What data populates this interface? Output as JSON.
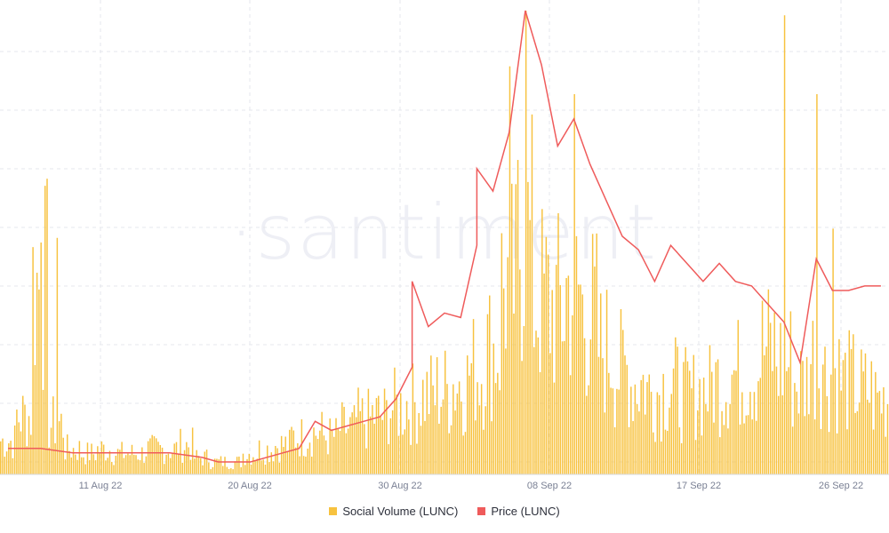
{
  "watermark": "·santiment",
  "colors": {
    "volume": "#f7c23f",
    "price": "#ef5b5b",
    "grid": "#e6e7ec"
  },
  "chart_data": {
    "type": "bar",
    "grid": true,
    "legend_position": "bottom-center",
    "x_ticks": [
      "11 Aug 22",
      "20 Aug 22",
      "30 Aug 22",
      "08 Sep 22",
      "17 Sep 22",
      "26 Sep 22"
    ],
    "x_range": [
      "2022-08-07",
      "2022-09-30"
    ],
    "y_volume_range": [
      0,
      100
    ],
    "y_price_range": [
      0,
      100
    ],
    "series": [
      {
        "name": "Social Volume (LUNC)",
        "type": "bar",
        "daily_level": [
          {
            "date": "2022-08-07",
            "v": 8
          },
          {
            "date": "2022-08-08",
            "v": 14
          },
          {
            "date": "2022-08-09",
            "v": 45
          },
          {
            "date": "2022-08-10",
            "v": 12
          },
          {
            "date": "2022-08-11",
            "v": 6
          },
          {
            "date": "2022-08-12",
            "v": 5
          },
          {
            "date": "2022-08-13",
            "v": 6
          },
          {
            "date": "2022-08-14",
            "v": 5
          },
          {
            "date": "2022-08-15",
            "v": 5
          },
          {
            "date": "2022-08-16",
            "v": 6
          },
          {
            "date": "2022-08-17",
            "v": 6
          },
          {
            "date": "2022-08-18",
            "v": 7
          },
          {
            "date": "2022-08-19",
            "v": 4
          },
          {
            "date": "2022-08-20",
            "v": 3
          },
          {
            "date": "2022-08-21",
            "v": 3
          },
          {
            "date": "2022-08-22",
            "v": 5
          },
          {
            "date": "2022-08-23",
            "v": 6
          },
          {
            "date": "2022-08-24",
            "v": 7
          },
          {
            "date": "2022-08-25",
            "v": 9
          },
          {
            "date": "2022-08-26",
            "v": 10
          },
          {
            "date": "2022-08-27",
            "v": 9
          },
          {
            "date": "2022-08-28",
            "v": 11
          },
          {
            "date": "2022-08-29",
            "v": 13
          },
          {
            "date": "2022-08-30",
            "v": 14
          },
          {
            "date": "2022-08-31",
            "v": 16
          },
          {
            "date": "2022-09-01",
            "v": 17
          },
          {
            "date": "2022-09-02",
            "v": 19
          },
          {
            "date": "2022-09-03",
            "v": 20
          },
          {
            "date": "2022-09-04",
            "v": 22
          },
          {
            "date": "2022-09-05",
            "v": 25
          },
          {
            "date": "2022-09-06",
            "v": 30
          },
          {
            "date": "2022-09-07",
            "v": 45
          },
          {
            "date": "2022-09-08",
            "v": 55
          },
          {
            "date": "2022-09-09",
            "v": 42
          },
          {
            "date": "2022-09-10",
            "v": 40
          },
          {
            "date": "2022-09-11",
            "v": 44
          },
          {
            "date": "2022-09-12",
            "v": 38
          },
          {
            "date": "2022-09-13",
            "v": 30
          },
          {
            "date": "2022-09-14",
            "v": 25
          },
          {
            "date": "2022-09-15",
            "v": 22
          },
          {
            "date": "2022-09-16",
            "v": 20
          },
          {
            "date": "2022-09-17",
            "v": 21
          },
          {
            "date": "2022-09-18",
            "v": 19
          },
          {
            "date": "2022-09-19",
            "v": 20
          },
          {
            "date": "2022-09-20",
            "v": 22
          },
          {
            "date": "2022-09-21",
            "v": 24
          },
          {
            "date": "2022-09-22",
            "v": 25
          },
          {
            "date": "2022-09-23",
            "v": 30
          },
          {
            "date": "2022-09-24",
            "v": 27
          },
          {
            "date": "2022-09-25",
            "v": 22
          },
          {
            "date": "2022-09-26",
            "v": 28
          },
          {
            "date": "2022-09-27",
            "v": 24
          },
          {
            "date": "2022-09-28",
            "v": 22
          },
          {
            "date": "2022-09-29",
            "v": 20
          },
          {
            "date": "2022-09-30",
            "v": 18
          }
        ],
        "peaks": [
          {
            "date": "2022-08-09",
            "v": 50
          },
          {
            "date": "2022-08-10",
            "v": 51
          },
          {
            "date": "2022-09-07",
            "v": 88
          },
          {
            "date": "2022-09-08",
            "v": 100
          },
          {
            "date": "2022-09-11",
            "v": 82
          },
          {
            "date": "2022-09-24",
            "v": 99
          },
          {
            "date": "2022-09-26",
            "v": 82
          },
          {
            "date": "2022-09-27",
            "v": 53
          }
        ]
      },
      {
        "name": "Price (LUNC)",
        "type": "line",
        "points": [
          {
            "date": "2022-08-07",
            "v": 3
          },
          {
            "date": "2022-08-09",
            "v": 3
          },
          {
            "date": "2022-08-11",
            "v": 2
          },
          {
            "date": "2022-08-13",
            "v": 2
          },
          {
            "date": "2022-08-15",
            "v": 2
          },
          {
            "date": "2022-08-17",
            "v": 2
          },
          {
            "date": "2022-08-19",
            "v": 1
          },
          {
            "date": "2022-08-20",
            "v": 0
          },
          {
            "date": "2022-08-22",
            "v": 0
          },
          {
            "date": "2022-08-24",
            "v": 2
          },
          {
            "date": "2022-08-25",
            "v": 3
          },
          {
            "date": "2022-08-26",
            "v": 9
          },
          {
            "date": "2022-08-27",
            "v": 7
          },
          {
            "date": "2022-08-28",
            "v": 8
          },
          {
            "date": "2022-08-29",
            "v": 9
          },
          {
            "date": "2022-08-30",
            "v": 10
          },
          {
            "date": "2022-08-31",
            "v": 14
          },
          {
            "date": "2022-09-01",
            "v": 21
          },
          {
            "date": "2022-09-01",
            "v": 40
          },
          {
            "date": "2022-09-02",
            "v": 30
          },
          {
            "date": "2022-09-03",
            "v": 33
          },
          {
            "date": "2022-09-04",
            "v": 32
          },
          {
            "date": "2022-09-05",
            "v": 48
          },
          {
            "date": "2022-09-05",
            "v": 65
          },
          {
            "date": "2022-09-06",
            "v": 60
          },
          {
            "date": "2022-09-07",
            "v": 73
          },
          {
            "date": "2022-09-08",
            "v": 100
          },
          {
            "date": "2022-09-09",
            "v": 88
          },
          {
            "date": "2022-09-10",
            "v": 70
          },
          {
            "date": "2022-09-11",
            "v": 76
          },
          {
            "date": "2022-09-12",
            "v": 66
          },
          {
            "date": "2022-09-13",
            "v": 58
          },
          {
            "date": "2022-09-14",
            "v": 50
          },
          {
            "date": "2022-09-15",
            "v": 47
          },
          {
            "date": "2022-09-16",
            "v": 40
          },
          {
            "date": "2022-09-17",
            "v": 48
          },
          {
            "date": "2022-09-18",
            "v": 44
          },
          {
            "date": "2022-09-19",
            "v": 40
          },
          {
            "date": "2022-09-20",
            "v": 44
          },
          {
            "date": "2022-09-21",
            "v": 40
          },
          {
            "date": "2022-09-22",
            "v": 39
          },
          {
            "date": "2022-09-23",
            "v": 35
          },
          {
            "date": "2022-09-24",
            "v": 31
          },
          {
            "date": "2022-09-25",
            "v": 22
          },
          {
            "date": "2022-09-26",
            "v": 45
          },
          {
            "date": "2022-09-27",
            "v": 38
          },
          {
            "date": "2022-09-28",
            "v": 38
          },
          {
            "date": "2022-09-29",
            "v": 39
          },
          {
            "date": "2022-09-30",
            "v": 39
          }
        ]
      }
    ]
  }
}
